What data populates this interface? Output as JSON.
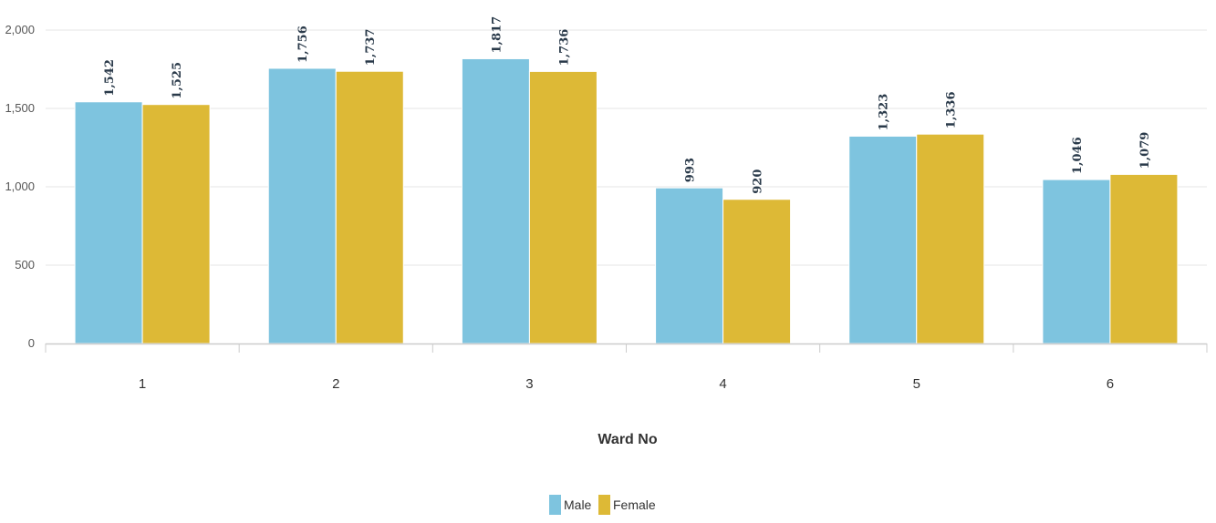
{
  "chart_data": {
    "type": "bar",
    "title": "",
    "xlabel": "Ward No",
    "ylabel": "",
    "categories": [
      "1",
      "2",
      "3",
      "4",
      "5",
      "6"
    ],
    "series": [
      {
        "name": "Male",
        "color": "#7ec4df",
        "values": [
          1542,
          1756,
          1817,
          993,
          1323,
          1046
        ]
      },
      {
        "name": "Female",
        "color": "#ddb936",
        "values": [
          1525,
          1737,
          1736,
          920,
          1336,
          1079
        ]
      }
    ],
    "data_labels": {
      "Male": [
        "1,542",
        "1,756",
        "1,817",
        "993",
        "1,323",
        "1,046"
      ],
      "Female": [
        "1,525",
        "1,737",
        "1,736",
        "920",
        "1,336",
        "1,079"
      ]
    },
    "ylim": [
      0,
      2000
    ],
    "yticks": [
      0,
      500,
      1000,
      1500,
      2000
    ],
    "ytick_labels": [
      "0",
      "500",
      "1,000",
      "1,500",
      "2,000"
    ],
    "grid": true,
    "legend_position": "bottom-center"
  }
}
